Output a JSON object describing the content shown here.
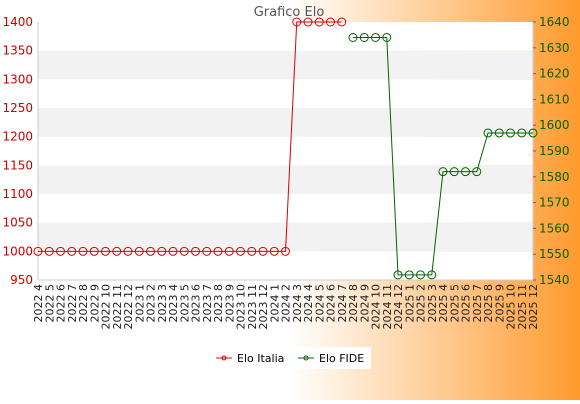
{
  "colors": {
    "background_left": "#ffffff",
    "background_right": "#ff9a2e",
    "plot_band_light": "#ffffff",
    "plot_band_dark": "#f2f2f2",
    "series_italia": "#dd0000",
    "series_fide": "#006400",
    "left_axis_text": "#cc0000",
    "right_axis_text": "#006400",
    "title_text": "#555555",
    "tick_text": "#222222"
  },
  "chart_data": {
    "type": "line",
    "title": "Grafico Elo",
    "xlabel": "",
    "ylabel_left": "",
    "ylabel_right": "",
    "categories": [
      "2022 4",
      "2022 5",
      "2022 6",
      "2022 7",
      "2022 8",
      "2022 9",
      "2022 10",
      "2022 11",
      "2022 12",
      "2023 1",
      "2023 2",
      "2023 3",
      "2023 4",
      "2023 5",
      "2023 6",
      "2023 7",
      "2023 8",
      "2023 9",
      "2023 10",
      "2023 11",
      "2023 12",
      "2024 1",
      "2024 2",
      "2024 3",
      "2024 4",
      "2024 5",
      "2024 6",
      "2024 7",
      "2024 8",
      "2024 9",
      "2024 10",
      "2024 11",
      "2024 12",
      "2025 1",
      "2025 2",
      "2025 3",
      "2025 4",
      "2025 5",
      "2025 6",
      "2025 7",
      "2025 8",
      "2025 9",
      "2025 10",
      "2025 11",
      "2025 12"
    ],
    "y_left": {
      "min": 950,
      "max": 1400,
      "ticks": [
        950,
        1000,
        1050,
        1100,
        1150,
        1200,
        1250,
        1300,
        1350,
        1400
      ]
    },
    "y_right": {
      "min": 1540,
      "max": 1640,
      "ticks": [
        1540,
        1550,
        1560,
        1570,
        1580,
        1590,
        1600,
        1610,
        1620,
        1630,
        1640
      ]
    },
    "grid": false,
    "legend_position": "bottom-center",
    "series": [
      {
        "name": "Elo Italia",
        "axis": "left",
        "values": [
          1000,
          1000,
          1000,
          1000,
          1000,
          1000,
          1000,
          1000,
          1000,
          1000,
          1000,
          1000,
          1000,
          1000,
          1000,
          1000,
          1000,
          1000,
          1000,
          1000,
          1000,
          1000,
          1000,
          1400,
          1400,
          1400,
          1400,
          1400,
          null,
          null,
          null,
          null,
          null,
          null,
          null,
          null,
          null,
          null,
          null,
          null,
          null,
          null,
          null,
          null,
          null
        ]
      },
      {
        "name": "Elo FIDE",
        "axis": "right",
        "values": [
          null,
          null,
          null,
          null,
          null,
          null,
          null,
          null,
          null,
          null,
          null,
          null,
          null,
          null,
          null,
          null,
          null,
          null,
          null,
          null,
          null,
          null,
          null,
          null,
          null,
          null,
          null,
          null,
          1634,
          1634,
          1634,
          1634,
          1542,
          1542,
          1542,
          1542,
          1582,
          1582,
          1582,
          1582,
          1597,
          1597,
          1597,
          1597,
          1597
        ]
      }
    ]
  }
}
